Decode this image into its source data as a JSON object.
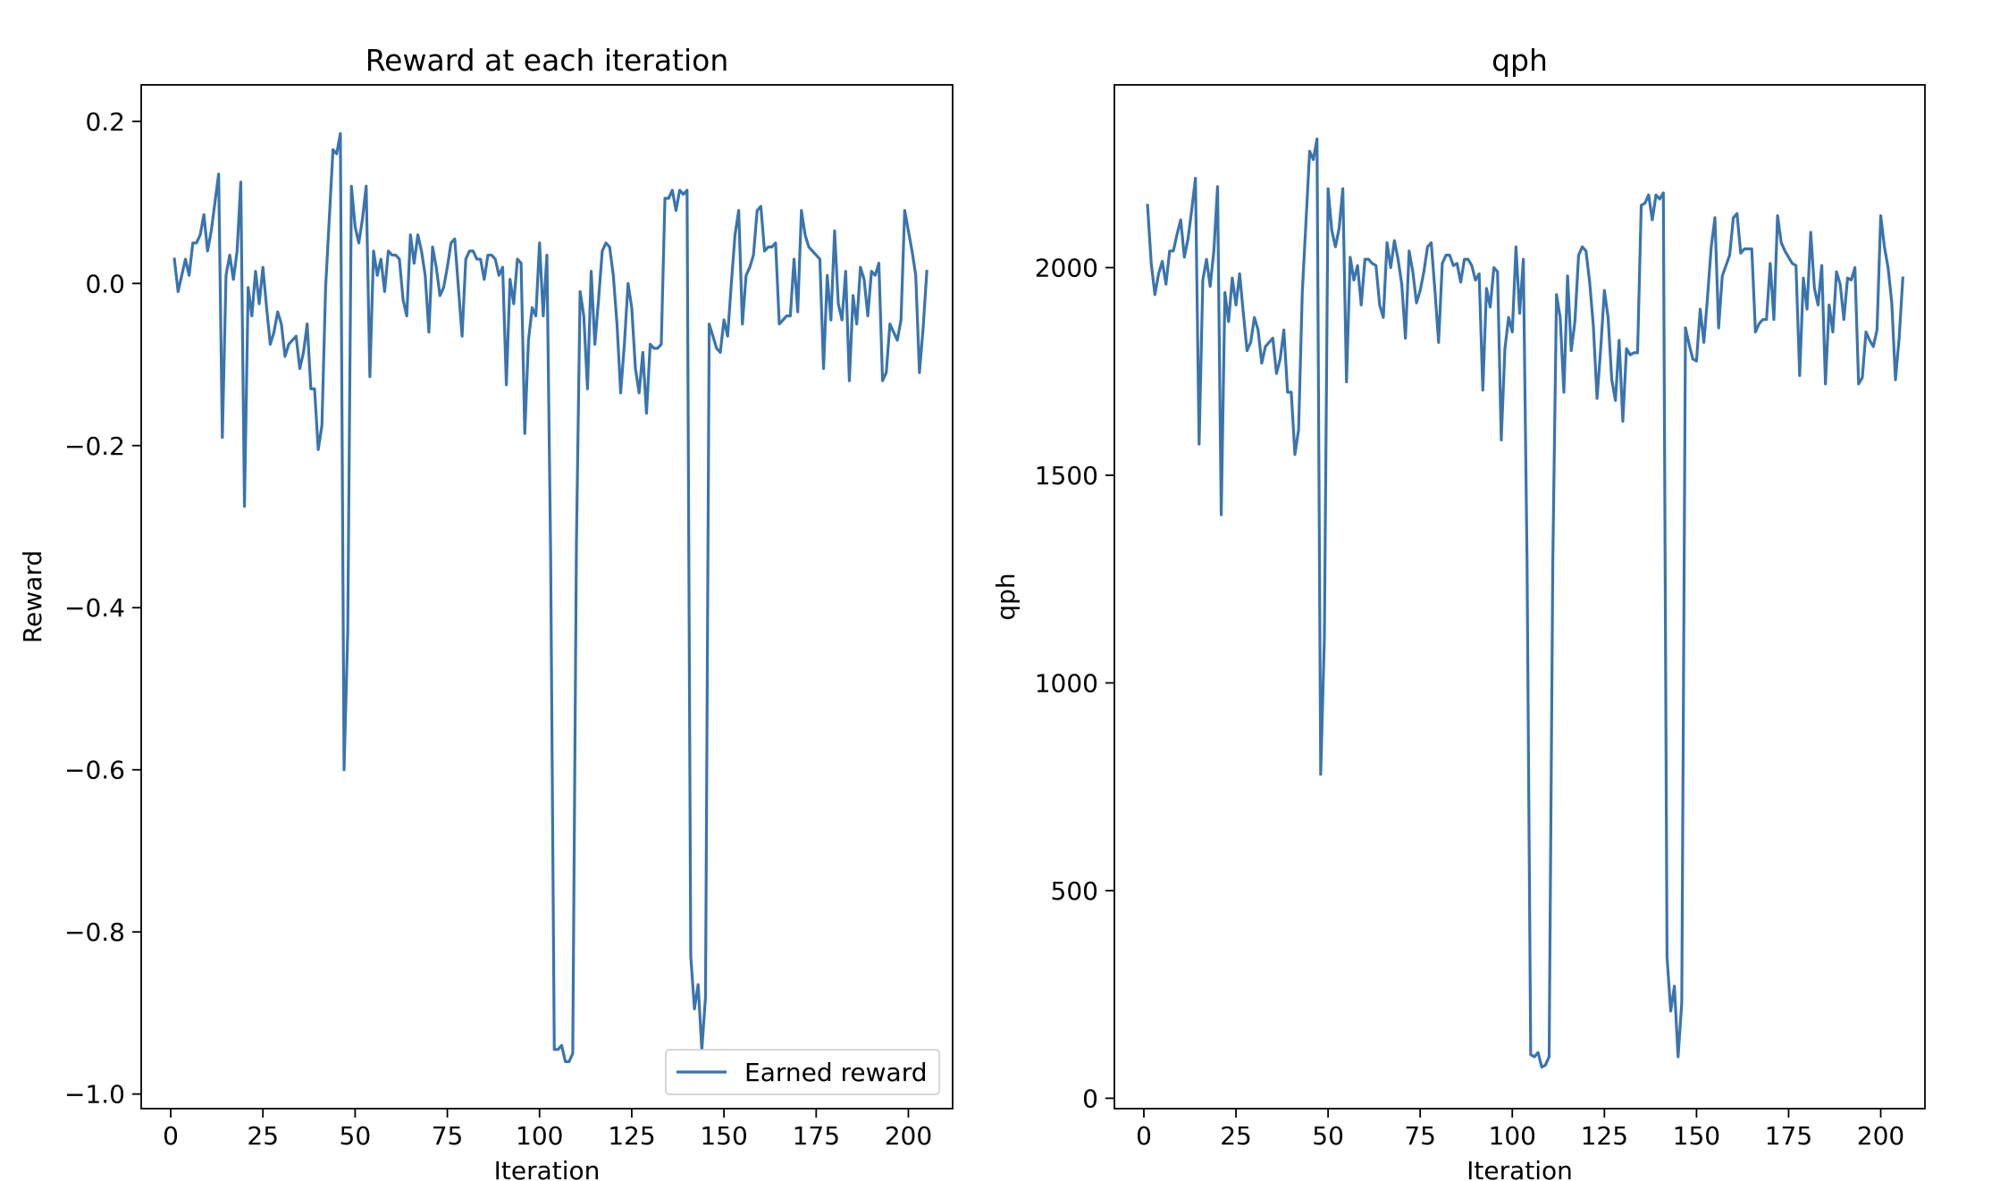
{
  "chart_data": [
    {
      "type": "line",
      "title": "Reward at each iteration",
      "xlabel": "Iteration",
      "ylabel": "Reward",
      "xlim": [
        -8.0,
        212.0
      ],
      "ylim": [
        -1.018,
        0.245
      ],
      "xticks": [
        0,
        25,
        50,
        75,
        100,
        125,
        150,
        175,
        200
      ],
      "xtick_labels": [
        "0",
        "25",
        "50",
        "75",
        "100",
        "125",
        "150",
        "175",
        "200"
      ],
      "yticks": [
        0.2,
        0.0,
        -0.2,
        -0.4,
        -0.6,
        -0.8,
        -1.0
      ],
      "ytick_labels": [
        "0.2",
        "0.0",
        "−0.2",
        "−0.4",
        "−0.6",
        "−0.8",
        "−1.0"
      ],
      "grid": false,
      "legend": {
        "position": "lower-right",
        "entries": [
          "Earned reward"
        ]
      },
      "series": [
        {
          "name": "Earned reward",
          "color": "#3a74ae",
          "x_start": 1,
          "x_step": 1,
          "values": [
            0.03,
            -0.01,
            0.01,
            0.03,
            0.01,
            0.05,
            0.05,
            0.06,
            0.085,
            0.04,
            0.065,
            0.1,
            0.135,
            -0.19,
            0.01,
            0.035,
            0.005,
            0.04,
            0.125,
            -0.275,
            -0.005,
            -0.04,
            0.015,
            -0.025,
            0.02,
            -0.03,
            -0.075,
            -0.06,
            -0.035,
            -0.05,
            -0.09,
            -0.075,
            -0.07,
            -0.065,
            -0.105,
            -0.085,
            -0.05,
            -0.13,
            -0.13,
            -0.205,
            -0.175,
            -0.005,
            0.08,
            0.165,
            0.16,
            0.185,
            -0.6,
            -0.43,
            0.12,
            0.07,
            0.05,
            0.08,
            0.12,
            -0.115,
            0.04,
            0.01,
            0.03,
            -0.01,
            0.04,
            0.035,
            0.035,
            0.03,
            -0.02,
            -0.04,
            0.06,
            0.025,
            0.06,
            0.04,
            0.01,
            -0.06,
            0.045,
            0.02,
            -0.015,
            -0.005,
            0.02,
            0.05,
            0.055,
            -0.005,
            -0.065,
            0.03,
            0.04,
            0.04,
            0.03,
            0.03,
            0.005,
            0.035,
            0.035,
            0.03,
            0.01,
            0.02,
            -0.125,
            0.005,
            -0.025,
            0.03,
            0.025,
            -0.185,
            -0.07,
            -0.03,
            -0.04,
            0.05,
            -0.04,
            0.035,
            -0.33,
            -0.945,
            -0.945,
            -0.94,
            -0.96,
            -0.96,
            -0.95,
            -0.32,
            -0.01,
            -0.04,
            -0.13,
            0.015,
            -0.075,
            -0.02,
            0.04,
            0.05,
            0.045,
            0.01,
            -0.05,
            -0.135,
            -0.075,
            0.0,
            -0.03,
            -0.105,
            -0.135,
            -0.085,
            -0.16,
            -0.075,
            -0.08,
            -0.08,
            -0.075,
            0.105,
            0.105,
            0.115,
            0.09,
            0.115,
            0.11,
            0.115,
            -0.83,
            -0.895,
            -0.865,
            -0.945,
            -0.88,
            -0.05,
            -0.065,
            -0.08,
            -0.085,
            -0.045,
            -0.065,
            0.0,
            0.06,
            0.09,
            -0.05,
            0.01,
            0.02,
            0.035,
            0.09,
            0.095,
            0.04,
            0.045,
            0.045,
            0.05,
            -0.05,
            -0.045,
            -0.04,
            -0.04,
            0.03,
            -0.035,
            0.09,
            0.06,
            0.045,
            0.04,
            0.035,
            0.03,
            -0.105,
            0.01,
            -0.045,
            0.065,
            -0.025,
            -0.045,
            0.015,
            -0.12,
            -0.015,
            -0.05,
            0.02,
            0.005,
            -0.04,
            0.015,
            0.01,
            0.025,
            -0.12,
            -0.11,
            -0.05,
            -0.06,
            -0.07,
            -0.045,
            0.09,
            0.065,
            0.04,
            0.01,
            -0.11,
            -0.055,
            0.015
          ]
        }
      ]
    },
    {
      "type": "line",
      "title": "qph",
      "xlabel": "Iteration",
      "ylabel": "qph",
      "xlim": [
        -8.0,
        212.0
      ],
      "ylim": [
        -25,
        2440
      ],
      "xticks": [
        0,
        25,
        50,
        75,
        100,
        125,
        150,
        175,
        200
      ],
      "xtick_labels": [
        "0",
        "25",
        "50",
        "75",
        "100",
        "125",
        "150",
        "175",
        "200"
      ],
      "yticks": [
        2000,
        1500,
        1000,
        500,
        0
      ],
      "ytick_labels": [
        "2000",
        "1500",
        "1000",
        "500",
        "0"
      ],
      "grid": false,
      "series": [
        {
          "color": "#3a74ae",
          "x_start": 1,
          "x_step": 1,
          "values": [
            2150,
            2010,
            1935,
            1985,
            2015,
            1960,
            2040,
            2040,
            2080,
            2115,
            2025,
            2070,
            2140,
            2215,
            1575,
            1970,
            2020,
            1955,
            2040,
            2195,
            1405,
            1940,
            1870,
            1975,
            1910,
            1985,
            1890,
            1800,
            1820,
            1880,
            1850,
            1770,
            1810,
            1820,
            1830,
            1745,
            1780,
            1850,
            1700,
            1700,
            1550,
            1610,
            1940,
            2110,
            2280,
            2260,
            2310,
            780,
            1110,
            2190,
            2090,
            2050,
            2095,
            2190,
            1725,
            2025,
            1970,
            2005,
            1910,
            2020,
            2020,
            2010,
            2005,
            1910,
            1880,
            2060,
            2000,
            2065,
            2020,
            1960,
            1830,
            2040,
            1990,
            1915,
            1945,
            1990,
            2050,
            2060,
            1945,
            1820,
            2010,
            2030,
            2030,
            2005,
            2010,
            1965,
            2020,
            2020,
            2005,
            1970,
            1985,
            1705,
            1950,
            1905,
            2000,
            1990,
            1585,
            1805,
            1880,
            1845,
            2050,
            1890,
            2020,
            1295,
            105,
            100,
            110,
            75,
            80,
            100,
            1295,
            1935,
            1880,
            1700,
            1980,
            1800,
            1870,
            2030,
            2050,
            2040,
            1965,
            1860,
            1685,
            1805,
            1945,
            1880,
            1730,
            1680,
            1825,
            1630,
            1805,
            1790,
            1795,
            1795,
            2150,
            2155,
            2175,
            2115,
            2175,
            2165,
            2180,
            340,
            210,
            270,
            100,
            230,
            1855,
            1815,
            1780,
            1775,
            1900,
            1820,
            1930,
            2050,
            2120,
            1855,
            1980,
            2005,
            2030,
            2120,
            2130,
            2035,
            2045,
            2045,
            2045,
            1845,
            1865,
            1875,
            1875,
            2010,
            1875,
            2125,
            2060,
            2040,
            2025,
            2010,
            2005,
            1740,
            1975,
            1900,
            2085,
            1950,
            1910,
            2005,
            1720,
            1910,
            1845,
            1990,
            1960,
            1875,
            1975,
            1970,
            2000,
            1720,
            1735,
            1845,
            1825,
            1810,
            1850,
            2125,
            2050,
            2000,
            1915,
            1730,
            1830,
            1975
          ]
        }
      ]
    }
  ]
}
